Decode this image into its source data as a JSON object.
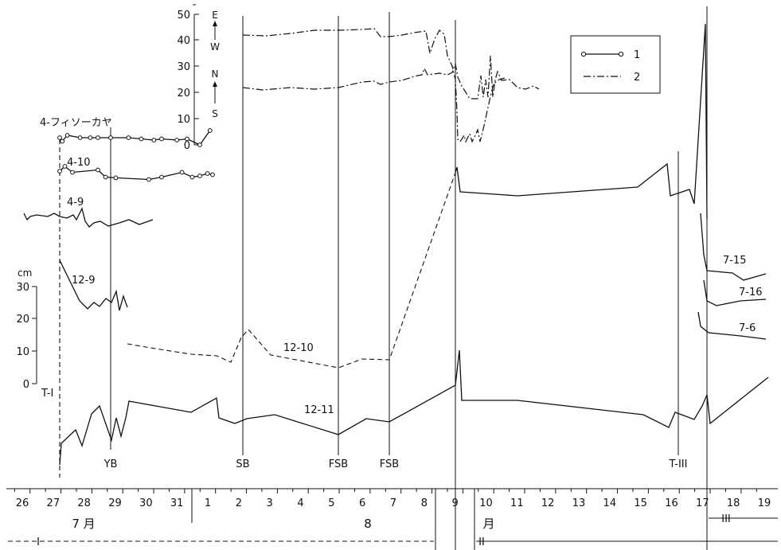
{
  "chart_data": {
    "type": "line",
    "title": "",
    "x_axis": {
      "day_ticks": [
        "26",
        "27",
        "28",
        "29",
        "30",
        "31",
        "1",
        "2",
        "3",
        "4",
        "5",
        "6",
        "7",
        "8",
        "9",
        "10",
        "11",
        "12",
        "13",
        "14",
        "15",
        "16",
        "17",
        "18",
        "19"
      ],
      "month_labels": [
        "7 月",
        "8",
        "月"
      ],
      "period_labels": [
        "I",
        "II",
        "III"
      ]
    },
    "tilt_axis": {
      "unit": "″",
      "ticks": [
        "50",
        "40",
        "30",
        "20",
        "10",
        "0"
      ],
      "ew_label": [
        "E",
        "W"
      ],
      "ns_label": [
        "N",
        "S"
      ]
    },
    "cm_axis": {
      "unit": "cm",
      "ticks": [
        "30",
        "20",
        "10",
        "0"
      ]
    },
    "legend": [
      {
        "label": "1",
        "style": "solid-circles"
      },
      {
        "label": "2",
        "style": "dash-dot"
      }
    ],
    "event_labels": [
      "T-I",
      "YB",
      "SB",
      "FSB",
      "FSB",
      "T-III"
    ],
    "station_labels": [
      "4-フィソーカヤ",
      "4-10",
      "4-9",
      "12-9",
      "12-10",
      "12-11",
      "7-15",
      "7-16",
      "7-6"
    ],
    "series": [
      {
        "name": "4-フィソーカヤ",
        "points": [
          [
            27.0,
            0
          ],
          [
            27.05,
            -1.5
          ],
          [
            27.15,
            1
          ],
          [
            27.4,
            0
          ],
          [
            27.6,
            0
          ],
          [
            27.75,
            0
          ],
          [
            28.0,
            0
          ],
          [
            28.35,
            0
          ],
          [
            28.6,
            -0.5
          ],
          [
            28.85,
            -1
          ],
          [
            29.0,
            -0.5
          ],
          [
            29.3,
            -1
          ],
          [
            29.5,
            -0.5
          ],
          [
            29.75,
            -3
          ],
          [
            29.95,
            3
          ]
        ]
      },
      {
        "name": "4-10",
        "points": [
          [
            27.0,
            -1
          ],
          [
            27.1,
            1
          ],
          [
            27.25,
            -1.5
          ],
          [
            27.75,
            -0.5
          ],
          [
            27.9,
            -3.5
          ],
          [
            28.1,
            -3.8
          ],
          [
            28.75,
            -4.5
          ],
          [
            29.0,
            -3.5
          ],
          [
            29.4,
            -1.5
          ],
          [
            29.6,
            -3.5
          ],
          [
            29.75,
            -3
          ],
          [
            29.9,
            -2
          ],
          [
            30.0,
            -2.5
          ]
        ]
      }
    ]
  }
}
